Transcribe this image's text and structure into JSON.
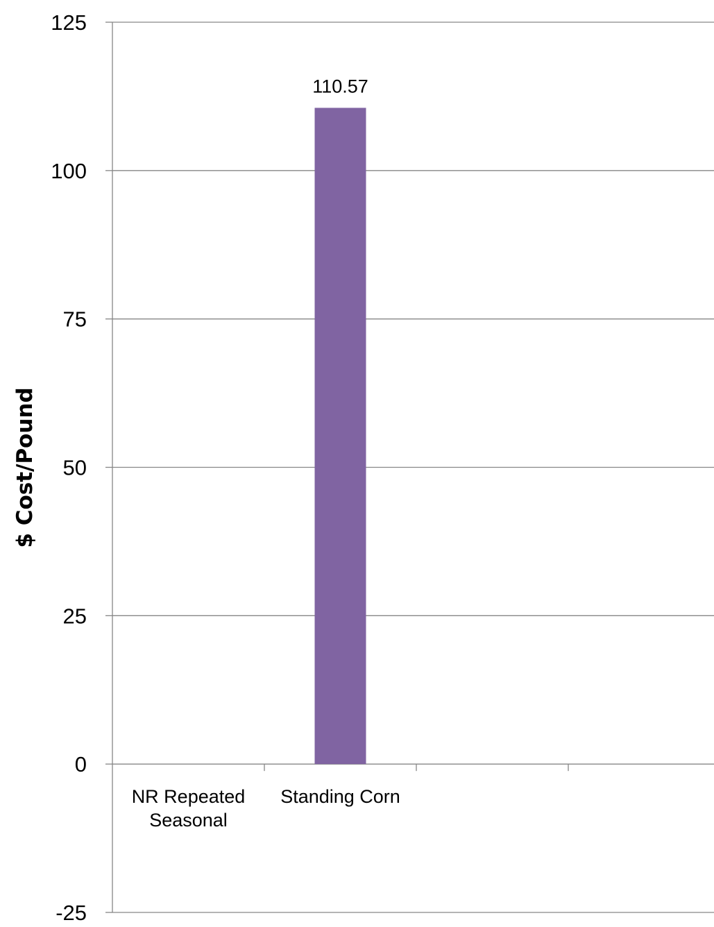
{
  "chart_data": {
    "type": "bar",
    "categories": [
      "NR Repeated Seasonal",
      "Standing Corn",
      "",
      ""
    ],
    "category_label_lines": [
      [
        "NR Repeated",
        "Seasonal"
      ],
      [
        "Standing Corn"
      ],
      [],
      []
    ],
    "series": [
      {
        "values": [
          null,
          110.57,
          null,
          null
        ],
        "color": "#8064a2"
      }
    ],
    "data_labels": [
      "",
      "110.57",
      "",
      ""
    ],
    "title": "",
    "xlabel": "",
    "ylabel": "$ Cost/Pound",
    "ylim": [
      -25,
      125
    ],
    "yticks": [
      125,
      100,
      75,
      50,
      25,
      0,
      -25
    ],
    "ytick_labels": [
      "125",
      "100",
      "75",
      "50",
      "25",
      "0",
      "-25"
    ],
    "grid": true,
    "legend": "none"
  }
}
